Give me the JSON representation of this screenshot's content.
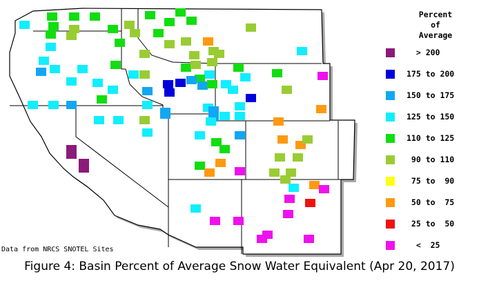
{
  "legend": {
    "title_line1": "Percent",
    "title_line2": "of",
    "title_line3": "Average",
    "items": [
      {
        "label": "  > 200",
        "color": "#8B1A7A"
      },
      {
        "label": "175 to 200",
        "color": "#0000DD"
      },
      {
        "label": "150 to 175",
        "color": "#11A7F2"
      },
      {
        "label": "125 to 150",
        "color": "#11EEFF"
      },
      {
        "label": "110 to 125",
        "color": "#11DD11"
      },
      {
        "label": " 90 to 110",
        "color": "#99CC33"
      },
      {
        "label": " 75 to  90",
        "color": "#FFFF11"
      },
      {
        "label": " 50 to  75",
        "color": "#FF9911"
      },
      {
        "label": " 25 to  50",
        "color": "#EE1111"
      },
      {
        "label": "  <  25",
        "color": "#EE11EE"
      }
    ]
  },
  "credit": "Data from NRCS SNOTEL Sites",
  "caption": "Figure 4: Basin Percent of Average Snow Water Equivalent (Apr 20, 2017)",
  "colors": {
    "map_fill": "#ffffff",
    "border": "#000000",
    "shadow": "#aaaaaa"
  }
}
